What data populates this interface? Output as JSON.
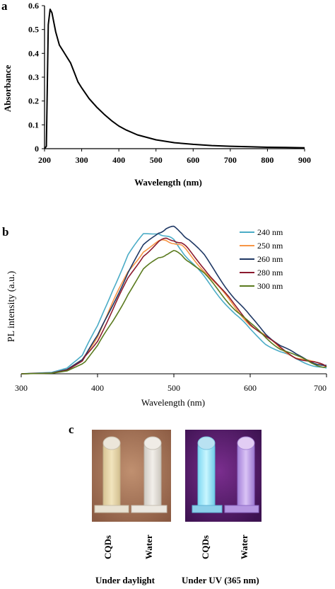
{
  "panels": {
    "a": "a",
    "b": "b",
    "c": "c"
  },
  "chart_data": [
    {
      "type": "line",
      "title": "",
      "xlabel": "Wavelength (nm)",
      "ylabel": "Absorbance",
      "xlim": [
        200,
        900
      ],
      "ylim": [
        0,
        0.6
      ],
      "xticks": [
        "200",
        "300",
        "400",
        "500",
        "600",
        "700",
        "800",
        "900"
      ],
      "yticks": [
        "0",
        "0.1",
        "0.2",
        "0.3",
        "0.4",
        "0.5",
        "0.6"
      ],
      "grid": false,
      "series": [
        {
          "color": "#000000",
          "x": [
            200,
            205,
            210,
            215,
            220,
            230,
            240,
            250,
            260,
            270,
            280,
            290,
            300,
            320,
            340,
            360,
            380,
            400,
            420,
            450,
            500,
            550,
            600,
            650,
            700,
            750,
            800,
            850,
            900
          ],
          "y": [
            0,
            0.01,
            0.52,
            0.585,
            0.57,
            0.49,
            0.435,
            0.41,
            0.385,
            0.36,
            0.32,
            0.28,
            0.255,
            0.21,
            0.175,
            0.145,
            0.118,
            0.095,
            0.078,
            0.058,
            0.037,
            0.025,
            0.018,
            0.013,
            0.01,
            0.008,
            0.006,
            0.005,
            0.004
          ]
        }
      ]
    },
    {
      "type": "line",
      "title": "",
      "xlabel": "Wavelength (nm)",
      "ylabel": "PL intensity (a.u.)",
      "xlim": [
        300,
        700
      ],
      "ylim": [
        0,
        1.05
      ],
      "xticks": [
        "300",
        "400",
        "500",
        "600",
        "700"
      ],
      "yticks": [],
      "grid": false,
      "legend": "top-right",
      "x": [
        300,
        340,
        360,
        380,
        400,
        420,
        440,
        460,
        480,
        490,
        500,
        510,
        520,
        540,
        560,
        580,
        600,
        620,
        640,
        660,
        680,
        700
      ],
      "series": [
        {
          "name": "240 nm",
          "color": "#4bacc6",
          "y": [
            0,
            0.01,
            0.04,
            0.13,
            0.33,
            0.6,
            0.84,
            0.98,
            1.0,
            0.97,
            0.94,
            0.88,
            0.8,
            0.68,
            0.55,
            0.42,
            0.31,
            0.22,
            0.15,
            0.1,
            0.07,
            0.04
          ]
        },
        {
          "name": "250 nm",
          "color": "#f79646",
          "y": [
            0,
            0.005,
            0.03,
            0.1,
            0.27,
            0.5,
            0.72,
            0.87,
            0.93,
            0.94,
            0.93,
            0.9,
            0.85,
            0.73,
            0.6,
            0.47,
            0.35,
            0.26,
            0.18,
            0.12,
            0.08,
            0.05
          ]
        },
        {
          "name": "260 nm",
          "color": "#1f3864",
          "y": [
            0,
            0.005,
            0.03,
            0.1,
            0.26,
            0.49,
            0.72,
            0.9,
            1.0,
            1.03,
            1.03,
            1.0,
            0.95,
            0.83,
            0.68,
            0.53,
            0.4,
            0.29,
            0.2,
            0.13,
            0.09,
            0.06
          ]
        },
        {
          "name": "280 nm",
          "color": "#8b1a2e",
          "y": [
            0,
            0.005,
            0.025,
            0.09,
            0.24,
            0.45,
            0.67,
            0.84,
            0.93,
            0.95,
            0.95,
            0.92,
            0.87,
            0.75,
            0.61,
            0.48,
            0.36,
            0.26,
            0.18,
            0.12,
            0.08,
            0.05
          ]
        },
        {
          "name": "300 nm",
          "color": "#5a7a1e",
          "y": [
            0,
            0.004,
            0.02,
            0.07,
            0.19,
            0.37,
            0.57,
            0.73,
            0.82,
            0.85,
            0.86,
            0.84,
            0.8,
            0.7,
            0.58,
            0.46,
            0.35,
            0.26,
            0.18,
            0.12,
            0.08,
            0.05
          ]
        }
      ]
    }
  ],
  "photos": {
    "left": {
      "colors": {
        "bg": "#a8795e",
        "tube_left": "#e8d8a8",
        "tube_right": "#e6e2da"
      },
      "labels": [
        "CQDs",
        "Water"
      ],
      "caption": "Under daylight"
    },
    "right": {
      "colors": {
        "bg": "#5a1e6e",
        "tube_left": "#9fe8ff",
        "tube_right": "#c7a7ef"
      },
      "labels": [
        "CQDs",
        "Water"
      ],
      "caption": "Under UV (365 nm)"
    }
  }
}
